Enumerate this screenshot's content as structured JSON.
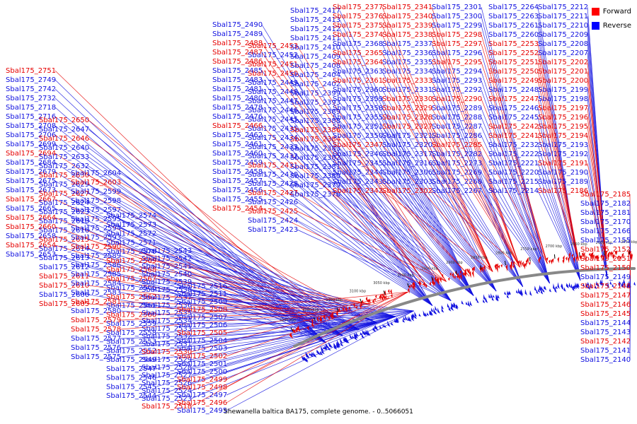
{
  "caption": "Shewanella baltica BA175, complete genome. - 0..5066051",
  "legend": [
    {
      "label": "Forward",
      "color": "#ff0000"
    },
    {
      "label": "Reverse",
      "color": "#0000ff"
    }
  ],
  "colors": {
    "forward": "#e60000",
    "reverse": "#1010e0",
    "backbone": "#888888"
  },
  "ticks": [
    "3250 kbp",
    "3200 kbp",
    "3150 kbp",
    "3100 kbp",
    "3050 kbp",
    "3000 kbp",
    "2950 kbp",
    "2900 kbp",
    "2850 kbp",
    "2800 kbp",
    "2750 kbp",
    "2700 kbp",
    "2650 kbp",
    "2600 kbp",
    "2550 kbp"
  ],
  "genes": {
    "forward": [
      "Sbal175_2751",
      "Sbal175_2694",
      "Sbal175_2664",
      "Sbal175_2650",
      "Sbal175_2630",
      "Sbal175_2667",
      "Sbal175_2654",
      "Sbal175_2603",
      "Sbal175_2605",
      "Sbal175_2660",
      "Sbal175_2646",
      "Sbal175_2610",
      "Sbal175_2627",
      "Sbal175_2590",
      "Sbal175_2560",
      "Sbal175_2518",
      "Sbal175_2615",
      "Sbal175_2562",
      "Sbal175_2611",
      "Sbal175_2567",
      "Sbal175_2486",
      "Sbal175_2496",
      "Sbal175_2487",
      "Sbal175_2488",
      "Sbal175_2568",
      "Sbal175_2569",
      "Sbal175_2530",
      "Sbal175_2450",
      "Sbal175_2451",
      "Sbal175_2453",
      "Sbal175_2454",
      "Sbal175_2578",
      "Sbal175_2579",
      "Sbal175_2581",
      "Sbal175_2498",
      "Sbal175_2499",
      "Sbal175_2502",
      "Sbal175_2505",
      "Sbal175_2508",
      "Sbal175_2466",
      "Sbal175_2427",
      "Sbal175_2431",
      "Sbal175_2384",
      "Sbal175_2386",
      "Sbal175_2425",
      "Sbal175_2374",
      "Sbal175_2342",
      "Sbal175_2327",
      "Sbal175_2328",
      "Sbal175_2361",
      "Sbal175_2364",
      "Sbal175_2329",
      "Sbal175_2365",
      "Sbal175_2330",
      "Sbal175_2333",
      "Sbal175_2338",
      "Sbal175_2375",
      "Sbal175_2376",
      "Sbal175_2377",
      "Sbal175_2339",
      "Sbal175_2340",
      "Sbal175_2341",
      "Sbal175_2347",
      "Sbal175_2285",
      "Sbal175_2290",
      "Sbal175_2295",
      "Sbal175_2297",
      "Sbal175_2298",
      "Sbal175_2241",
      "Sbal175_2242",
      "Sbal175_2247",
      "Sbal175_2249",
      "Sbal175_2250",
      "Sbal175_2251",
      "Sbal175_2252",
      "Sbal175_2253",
      "Sbal175_2302",
      "Sbal175_2185",
      "Sbal175_2186",
      "Sbal175_2191",
      "Sbal175_2194",
      "Sbal175_2195",
      "Sbal175_2196",
      "Sbal175_2197",
      "Sbal175_2200",
      "Sbal175_2201",
      "Sbal175_2202",
      "Sbal175_2142",
      "Sbal175_2145",
      "Sbal175_2146",
      "Sbal175_2147",
      "Sbal175_2148",
      "Sbal175_2150",
      "Sbal175_2151",
      "Sbal175_2152"
    ],
    "reverse": [
      "Sbal175_2749",
      "Sbal175_2716",
      "Sbal175_2673",
      "Sbal175_2665",
      "Sbal175_2653",
      "Sbal175_2647",
      "Sbal175_2632",
      "Sbal175_2623",
      "Sbal175_2614",
      "Sbal175_2742",
      "Sbal175_2732",
      "Sbal175_2718",
      "Sbal175_2706",
      "Sbal175_2679",
      "Sbal175_2708",
      "Sbal175_2699",
      "Sbal175_2684",
      "Sbal175_2616",
      "Sbal175_2675",
      "Sbal175_2633",
      "Sbal175_2658",
      "Sbal175_2618",
      "Sbal175_2640",
      "Sbal175_2624",
      "Sbal175_2589",
      "Sbal175_2575",
      "Sbal175_2559",
      "Sbal175_2539",
      "Sbal175_2577",
      "Sbal175_2593",
      "Sbal175_2613",
      "Sbal175_2580",
      "Sbal175_2629",
      "Sbal175_2594",
      "Sbal175_2540",
      "Sbal175_2516",
      "Sbal175_2503",
      "Sbal175_2480",
      "Sbal175_2460",
      "Sbal175_2585",
      "Sbal175_2544",
      "Sbal175_2504",
      "Sbal175_2583",
      "Sbal175_2545",
      "Sbal175_2506",
      "Sbal175_2597",
      "Sbal175_2526",
      "Sbal175_2606",
      "Sbal175_2570",
      "Sbal175_2528",
      "Sbal175_2573",
      "Sbal175_2534",
      "Sbal175_2598",
      "Sbal175_2527",
      "Sbal175_2599",
      "Sbal175_2529",
      "Sbal175_2571",
      "Sbal175_2489",
      "Sbal175_2491",
      "Sbal175_2572",
      "Sbal175_2531",
      "Sbal175_2492",
      "Sbal175_2574",
      "Sbal175_2532",
      "Sbal175_2494",
      "Sbal175_2533",
      "Sbal175_2497",
      "Sbal175_2535",
      "Sbal175_2455",
      "Sbal175_2536",
      "Sbal175_2456",
      "Sbal175_2537",
      "Sbal175_2501",
      "Sbal175_2457",
      "Sbal175_2538",
      "Sbal175_2458",
      "Sbal175_2542",
      "Sbal175_2461",
      "Sbal175_2546",
      "Sbal175_2462",
      "Sbal175_2547",
      "Sbal175_2509",
      "Sbal175_2445",
      "Sbal175_2459",
      "Sbal175_2446",
      "Sbal175_2428",
      "Sbal175_2447",
      "Sbal175_2399",
      "Sbal175_2452",
      "Sbal175_2434",
      "Sbal175_2448",
      "Sbal175_2382",
      "Sbal175_2449",
      "Sbal175_2413",
      "Sbal175_2404",
      "Sbal175_2409",
      "Sbal175_2410",
      "Sbal175_2412",
      "Sbal175_2368",
      "Sbal175_2424",
      "Sbal175_2430",
      "Sbal175_2383",
      "Sbal175_2435",
      "Sbal175_2289",
      "Sbal175_2246",
      "Sbal175_2248",
      "Sbal175_2300",
      "Sbal175_2301",
      "Sbal175_2303",
      "Sbal175_2140",
      "Sbal175_2612",
      "Sbal175_2558",
      "Sbal175_2604",
      "Sbal175_2552",
      "Sbal175_2595",
      "Sbal175_2543",
      "Sbal175_2586",
      "Sbal175_2524",
      "Sbal175_2584",
      "Sbal175_2523",
      "Sbal175_2576",
      "Sbal175_2511",
      "Sbal175_2566",
      "Sbal175_2507",
      "Sbal175_2561",
      "Sbal175_2500",
      "Sbal175_2553",
      "Sbal175_2495",
      "Sbal175_2549",
      "Sbal175_2490",
      "Sbal175_2541",
      "Sbal175_2483",
      "Sbal175_2478",
      "Sbal175_2476",
      "Sbal175_2493",
      "Sbal175_2485",
      "Sbal175_2481",
      "Sbal175_2433",
      "Sbal175_2432",
      "Sbal175_2426",
      "Sbal175_2423",
      "Sbal175_2417",
      "Sbal175_2411",
      "Sbal175_2408",
      "Sbal175_2402",
      "Sbal175_2393",
      "Sbal175_2389",
      "Sbal175_2388",
      "Sbal175_2381",
      "Sbal175_2378",
      "Sbal175_2363",
      "Sbal175_2359",
      "Sbal175_2350",
      "Sbal175_2380",
      "Sbal175_2379",
      "Sbal175_2360",
      "Sbal175_2358",
      "Sbal175_2355",
      "Sbal175_2351",
      "Sbal175_2346",
      "Sbal175_2345",
      "Sbal175_2344",
      "Sbal175_2343",
      "Sbal175_2337",
      "Sbal175_2336",
      "Sbal175_2335",
      "Sbal175_2334",
      "Sbal175_2331",
      "Sbal175_2320",
      "Sbal175_2316",
      "Sbal175_2306",
      "Sbal175_2292",
      "Sbal175_2282",
      "Sbal175_2269",
      "Sbal175_2321",
      "Sbal175_2317",
      "Sbal175_2299",
      "Sbal175_2296",
      "Sbal175_2294",
      "Sbal175_2293",
      "Sbal175_2288",
      "Sbal175_2287",
      "Sbal175_2286",
      "Sbal175_2273",
      "Sbal175_2268",
      "Sbal175_2267",
      "Sbal175_2264",
      "Sbal175_2263",
      "Sbal175_2261",
      "Sbal175_2260",
      "Sbal175_2245",
      "Sbal175_2232",
      "Sbal175_2220",
      "Sbal175_2210",
      "Sbal175_2207",
      "Sbal175_2199",
      "Sbal175_2222",
      "Sbal175_2221",
      "Sbal175_2215",
      "Sbal175_2214",
      "Sbal175_2212",
      "Sbal175_2211",
      "Sbal175_2209",
      "Sbal175_2208",
      "Sbal175_2198",
      "Sbal175_2193",
      "Sbal175_2192",
      "Sbal175_2190",
      "Sbal175_2189",
      "Sbal175_2182",
      "Sbal175_2181",
      "Sbal175_2170",
      "Sbal175_2166",
      "Sbal175_2155",
      "Sbal175_2149",
      "Sbal175_2144",
      "Sbal175_2143",
      "Sbal175_2141"
    ]
  }
}
